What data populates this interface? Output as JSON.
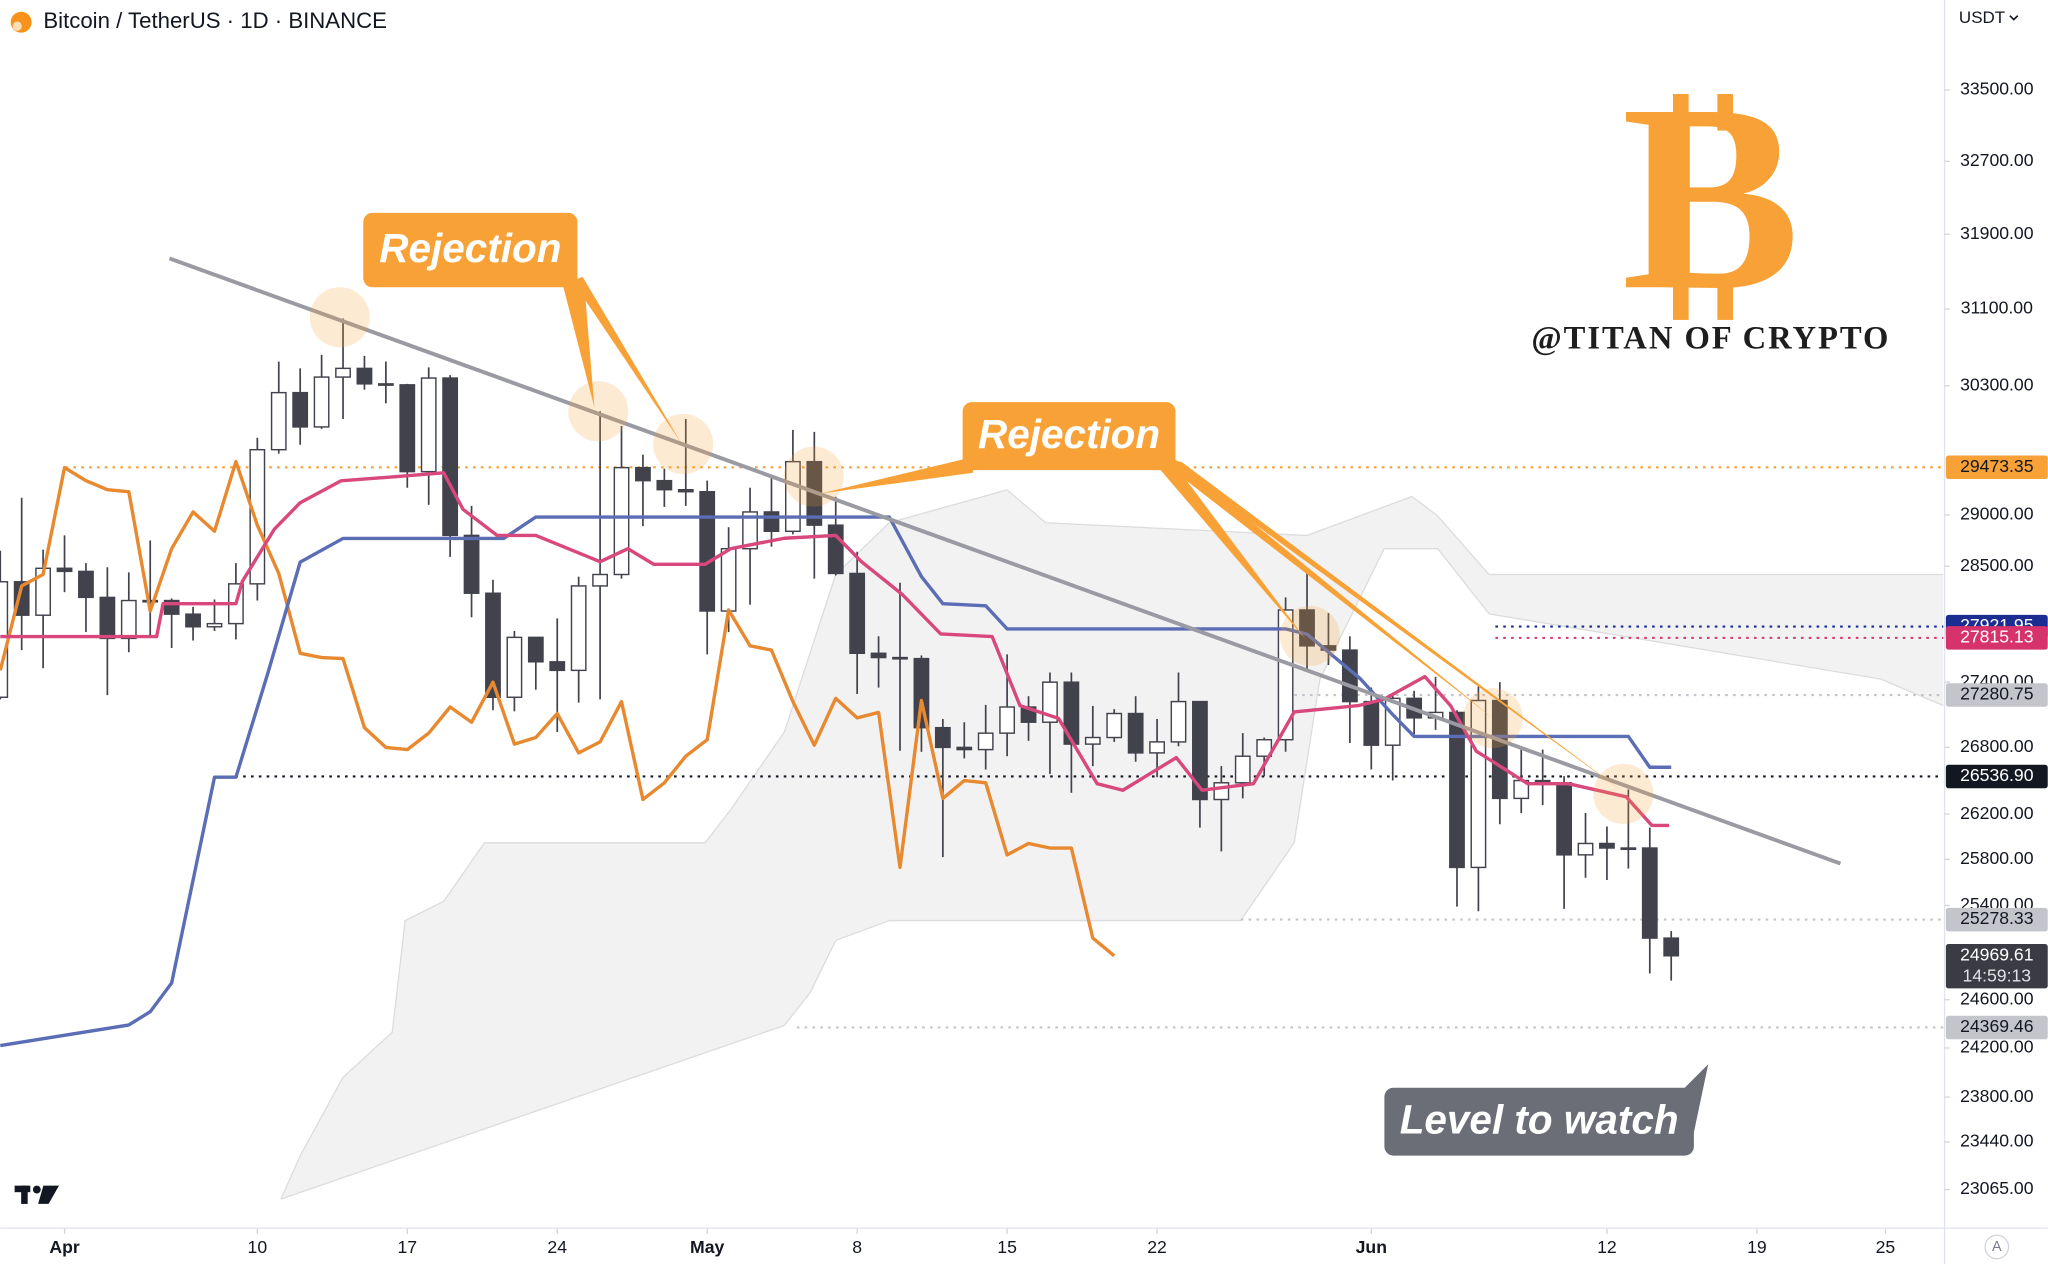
{
  "chart_data": {
    "type": "candlestick",
    "title": "Bitcoin / TetherUS · 1D · BINANCE",
    "currency": "USDT",
    "auto_button": "A",
    "log": true,
    "grid": false,
    "xlim": [
      88,
      178.7
    ],
    "ylim": [
      22770,
      34540
    ],
    "xticks": [
      {
        "value": 91,
        "label": "Apr"
      },
      {
        "value": 100,
        "label": "10"
      },
      {
        "value": 107,
        "label": "17"
      },
      {
        "value": 114,
        "label": "24"
      },
      {
        "value": 121,
        "label": "May"
      },
      {
        "value": 128,
        "label": "8"
      },
      {
        "value": 135,
        "label": "15"
      },
      {
        "value": 142,
        "label": "22"
      },
      {
        "value": 152,
        "label": "Jun"
      },
      {
        "value": 163,
        "label": "12"
      },
      {
        "value": 170,
        "label": "19"
      },
      {
        "value": 176,
        "label": "25"
      }
    ],
    "yticks": [
      {
        "value": 33500,
        "label": "33500.00"
      },
      {
        "value": 32700,
        "label": "32700.00"
      },
      {
        "value": 31900,
        "label": "31900.00"
      },
      {
        "value": 31100,
        "label": "31100.00"
      },
      {
        "value": 30300,
        "label": "30300.00"
      },
      {
        "value": 29000,
        "label": "29000.00"
      },
      {
        "value": 28500,
        "label": "28500.00"
      },
      {
        "value": 27400,
        "label": "27400.00"
      },
      {
        "value": 26800,
        "label": "26800.00"
      },
      {
        "value": 26200,
        "label": "26200.00"
      },
      {
        "value": 25800,
        "label": "25800.00"
      },
      {
        "value": 25400,
        "label": "25400.00"
      },
      {
        "value": 24600,
        "label": "24600.00"
      },
      {
        "value": 24200,
        "label": "24200.00"
      },
      {
        "value": 23800,
        "label": "23800.00"
      },
      {
        "value": 23440,
        "label": "23440.00"
      },
      {
        "value": 23065,
        "label": "23065.00"
      }
    ],
    "up_color": "#ffffff",
    "down_color": "#41424c",
    "wick_color": "#41424c",
    "x": [
      88,
      89,
      90,
      91,
      92,
      93,
      94,
      95,
      96,
      97,
      98,
      99,
      100,
      101,
      102,
      103,
      104,
      105,
      106,
      107,
      108,
      109,
      110,
      111,
      112,
      113,
      114,
      115,
      116,
      117,
      118,
      119,
      120,
      121,
      122,
      123,
      124,
      125,
      126,
      127,
      128,
      129,
      130,
      131,
      132,
      133,
      134,
      135,
      136,
      137,
      138,
      139,
      140,
      141,
      142,
      143,
      144,
      145,
      146,
      147,
      148,
      149,
      150,
      151,
      152,
      153,
      154,
      155,
      156,
      157,
      158,
      159,
      160,
      161,
      162,
      163,
      164,
      165,
      166
    ],
    "open": [
      27260,
      28350,
      28030,
      28480,
      28450,
      28200,
      27810,
      28170,
      28170,
      28040,
      27920,
      27950,
      28330,
      29650,
      30230,
      29880,
      30390,
      30480,
      30320,
      30310,
      29430,
      30380,
      28800,
      28240,
      27260,
      27820,
      27590,
      27510,
      28310,
      28420,
      29470,
      29340,
      29250,
      29230,
      28070,
      28670,
      29030,
      28840,
      29530,
      28900,
      28430,
      27670,
      27630,
      27620,
      26980,
      26800,
      26780,
      26930,
      27170,
      27030,
      27400,
      26830,
      26890,
      27110,
      26750,
      26850,
      27220,
      26330,
      26480,
      26720,
      26870,
      28080,
      27740,
      27700,
      27220,
      26820,
      27250,
      27070,
      27120,
      25730,
      27230,
      26340,
      26500,
      26480,
      25840,
      25940,
      25900,
      25900,
      25120
    ],
    "high": [
      28650,
      29170,
      28660,
      28800,
      28530,
      28490,
      28440,
      28750,
      28190,
      28110,
      28180,
      28530,
      29770,
      30550,
      30480,
      30620,
      31000,
      30610,
      30550,
      30320,
      30490,
      30410,
      29090,
      28370,
      27880,
      27820,
      28000,
      28400,
      30040,
      29890,
      29600,
      29460,
      29960,
      29340,
      28880,
      29270,
      29380,
      29850,
      29830,
      29180,
      28640,
      27830,
      28340,
      27650,
      27060,
      27030,
      27190,
      27660,
      27270,
      27490,
      27490,
      27180,
      27150,
      27270,
      27060,
      27490,
      27220,
      26630,
      26930,
      26890,
      28200,
      28450,
      28050,
      27830,
      27350,
      27300,
      27320,
      27450,
      27140,
      27360,
      27400,
      26800,
      26780,
      26540,
      26210,
      26090,
      26420,
      26080,
      25180
    ],
    "low": [
      27240,
      27700,
      27530,
      28250,
      27870,
      27280,
      27680,
      27840,
      27720,
      27790,
      27880,
      27800,
      28170,
      29610,
      29700,
      29860,
      29960,
      30260,
      30120,
      29270,
      29100,
      28590,
      28010,
      27140,
      27130,
      27330,
      26940,
      27210,
      27240,
      28380,
      28890,
      29080,
      29090,
      27660,
      27870,
      28130,
      28690,
      28810,
      28380,
      28410,
      27290,
      27350,
      26770,
      26760,
      25820,
      26700,
      26600,
      26720,
      26860,
      26560,
      26390,
      26630,
      26850,
      26670,
      26530,
      26810,
      26080,
      25870,
      26340,
      26540,
      26760,
      27520,
      27560,
      26840,
      26600,
      26500,
      26920,
      26960,
      25390,
      25350,
      26110,
      26210,
      26280,
      25370,
      25640,
      25620,
      25720,
      24820,
      24760
    ],
    "close": [
      28350,
      28030,
      28480,
      28450,
      28200,
      27810,
      28170,
      28170,
      28040,
      27920,
      27950,
      28330,
      29650,
      30230,
      29880,
      30390,
      30480,
      30320,
      30310,
      29430,
      30380,
      28800,
      28240,
      27260,
      27820,
      27590,
      27510,
      28310,
      28420,
      29470,
      29340,
      29250,
      29230,
      28070,
      28670,
      29030,
      28840,
      29530,
      28900,
      28430,
      27670,
      27630,
      27620,
      26980,
      26800,
      26780,
      26930,
      27170,
      27030,
      27400,
      26830,
      26890,
      27110,
      26750,
      26850,
      27220,
      26330,
      26480,
      26720,
      26870,
      28080,
      27740,
      27700,
      27220,
      26820,
      27250,
      27070,
      27120,
      25730,
      27230,
      26340,
      26500,
      26480,
      25840,
      25940,
      25900,
      25900,
      25120,
      24969.61
    ],
    "cloud": {
      "color": "#f2f2f3",
      "edge_color": "#dcdcdf",
      "span_a": {
        "x": [
          101.1,
          102,
          104,
          106.3,
          106.9,
          108.7,
          110.6,
          120.9,
          122.1,
          124.6,
          127,
          129.5,
          135,
          136.8,
          149,
          153.9,
          155.1,
          157.5,
          178.7
        ],
        "values": [
          22990,
          23330,
          23960,
          24330,
          25270,
          25435,
          25946,
          25946,
          26240,
          26940,
          28420,
          28924,
          29248,
          28924,
          28799,
          29183,
          28990,
          28420,
          28420
        ]
      },
      "span_b": {
        "x": [
          101.1,
          124.6,
          125.8,
          127,
          129.5,
          145.9,
          148.4,
          149.6,
          152.6,
          155.1,
          157.5,
          175.8,
          178.7
        ],
        "values": [
          22990,
          24386,
          24658,
          25100,
          25270,
          25270,
          25946,
          27428,
          28670,
          28670,
          28043,
          27428,
          27183
        ]
      }
    },
    "lines": [
      {
        "color": "#e8892f",
        "x": [
          88,
          89,
          90,
          91,
          92,
          93,
          94,
          95,
          96,
          97,
          98,
          99,
          100,
          101,
          102,
          103,
          104,
          105,
          106,
          107,
          108,
          109,
          110,
          111,
          112,
          113,
          114,
          115,
          116,
          117,
          118,
          119,
          120,
          121,
          122,
          123,
          124,
          125,
          126,
          127,
          128,
          129,
          130,
          131,
          132,
          133,
          134,
          135,
          136,
          137,
          138,
          139,
          140
        ],
        "values": [
          27510,
          28310,
          28420,
          29470,
          29340,
          29250,
          29230,
          28070,
          28670,
          29030,
          28840,
          29530,
          28900,
          28430,
          27670,
          27630,
          27620,
          26980,
          26800,
          26780,
          26930,
          27170,
          27030,
          27400,
          26830,
          26890,
          27110,
          26750,
          26850,
          27220,
          26330,
          26480,
          26720,
          26870,
          28080,
          27740,
          27700,
          27220,
          26820,
          27250,
          27070,
          27120,
          25730,
          27230,
          26340,
          26500,
          26480,
          25840,
          25940,
          25900,
          25900,
          25120,
          24969.61
        ]
      },
      {
        "color": "#5a6db5",
        "x": [
          88,
          94,
          95,
          96,
          98,
          99,
          100.5,
          102,
          104,
          111.5,
          113,
          114,
          129.5,
          131,
          132,
          134,
          135,
          148,
          149,
          151.5,
          153,
          154,
          164,
          165,
          166
        ],
        "values": [
          24220,
          24390,
          24500,
          24740,
          26530,
          26530,
          27490,
          28540,
          28770,
          28770,
          28980,
          28980,
          28980,
          28400,
          28140,
          28120,
          27900,
          27900,
          27850,
          27430,
          27100,
          26900,
          26900,
          26620,
          26620
        ]
      },
      {
        "color": "#d8487c",
        "x": [
          88,
          95.3,
          95.6,
          99,
          99.3,
          100.8,
          102,
          103.9,
          106.3,
          108.7,
          109.6,
          111.2,
          113,
          116,
          117.3,
          118.5,
          120.9,
          122.1,
          124.6,
          127,
          128.2,
          130.1,
          131.9,
          134.3,
          135.6,
          137.4,
          139.2,
          140.4,
          142.9,
          144.1,
          146.5,
          148.4,
          151.4,
          152.6,
          154.5,
          155.7,
          156.9,
          159.3,
          161.2,
          163.9,
          165.1,
          165.9
        ],
        "values": [
          27828,
          27828,
          28140,
          28140,
          28354,
          28862,
          29121,
          29338,
          29377,
          29418,
          29056,
          28799,
          28799,
          28544,
          28670,
          28519,
          28519,
          28670,
          28772,
          28799,
          28544,
          28229,
          27852,
          27828,
          27183,
          27065,
          26472,
          26413,
          26707,
          26413,
          26472,
          27124,
          27183,
          27243,
          27452,
          27183,
          26766,
          26472,
          26472,
          26354,
          26099,
          26099
        ]
      }
    ],
    "trendline": {
      "color": "#9a9aa2",
      "x": [
        95.9,
        173.9
      ],
      "values": [
        31639,
        25764
      ]
    },
    "price_lines": [
      {
        "value": 29473.35,
        "color": "#f7a136",
        "text_color": "#131722",
        "style": "dotted"
      },
      {
        "value": 27921.95,
        "color": "#1c2d91",
        "text_color": "#ffffff",
        "style": "dotted"
      },
      {
        "value": 27815.13,
        "color": "#d6336c",
        "text_color": "#ffffff",
        "style": "dotted"
      },
      {
        "value": 27280.75,
        "color": "#c4c5cb",
        "text_color": "#131722",
        "style": "dotted"
      },
      {
        "value": 26536.9,
        "label": "26536.90",
        "color": "#131722",
        "text_color": "#ffffff",
        "style": "dotted"
      },
      {
        "value": 25278.33,
        "color": "#c4c5cb",
        "text_color": "#131722",
        "style": "dotted"
      },
      {
        "value": 24969.61,
        "color": "#3a3b43",
        "text_color": "#ffffff",
        "style": "none",
        "countdown": "14:59:13"
      },
      {
        "value": 24369.46,
        "color": "#c4c5cb",
        "text_color": "#131722",
        "style": "dotted"
      }
    ],
    "annotations": [
      {
        "text": "Rejection",
        "color": "#f7a136"
      },
      {
        "text": "Rejection",
        "color": "#f7a136"
      },
      {
        "text": "Level to watch",
        "color": "#6b6d77"
      }
    ],
    "highlight_color": "#f7a136",
    "watermark": {
      "symbol": "B",
      "handle": "@TITAN OF CRYPTO",
      "color": "#f7a136"
    }
  }
}
